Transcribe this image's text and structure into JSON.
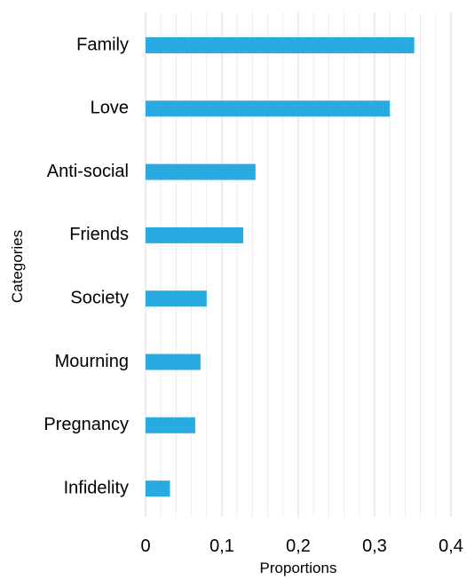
{
  "chart_data": {
    "type": "bar",
    "orientation": "horizontal",
    "categories": [
      "Family",
      "Love",
      "Anti-social",
      "Friends",
      "Society",
      "Mourning",
      "Pregnancy",
      "Infidelity"
    ],
    "values": [
      0.352,
      0.32,
      0.144,
      0.128,
      0.08,
      0.072,
      0.065,
      0.032
    ],
    "xlabel": "Proportions",
    "ylabel": "Categories",
    "xlim": [
      0,
      0.4
    ],
    "x_ticks": [
      "0",
      "0,1",
      "0,2",
      "0,3",
      "0,4"
    ],
    "grid": true,
    "bar_color": "#29abe2"
  }
}
